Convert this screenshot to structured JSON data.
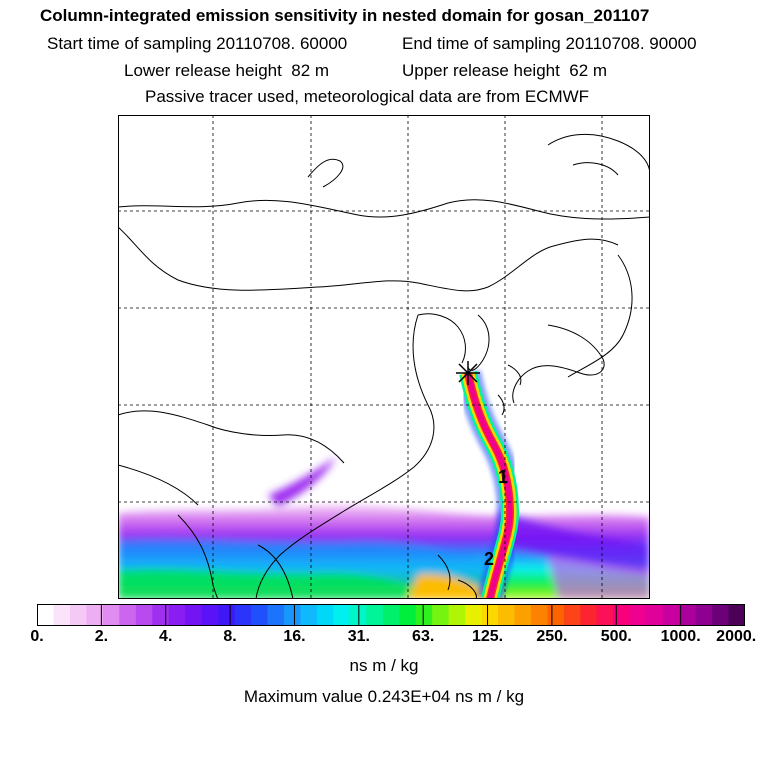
{
  "title": "Column-integrated emission sensitivity in nested domain for gosan_201107",
  "sampling": {
    "start_label": "Start time of sampling",
    "start_value": "20110708. 60000",
    "end_label": "End time of sampling",
    "end_value": "20110708. 90000"
  },
  "release": {
    "lower_label": "Lower release height",
    "lower_value": "82 m",
    "upper_label": "Upper release height",
    "upper_value": "62 m"
  },
  "note": "Passive tracer used, meteorological data are from ECMWF",
  "map": {
    "day_markers": [
      "1",
      "2"
    ],
    "release_site_marker": "star"
  },
  "colorbar": {
    "ticks": [
      "0.",
      "2.",
      "4.",
      "8.",
      "16.",
      "31.",
      "63.",
      "125.",
      "250.",
      "500.",
      "1000.",
      "2000."
    ],
    "colors": [
      "#ffffff",
      "#fbe4fb",
      "#f4c9f6",
      "#eeaef3",
      "#e08cf0",
      "#cc66ee",
      "#b84aef",
      "#a030f0",
      "#8a1ef2",
      "#7314f5",
      "#5a12f7",
      "#4018f8",
      "#2a34fa",
      "#2050fb",
      "#1c74fc",
      "#1896fc",
      "#10b8fc",
      "#00d8f8",
      "#00f0f0",
      "#00f6c8",
      "#00f49a",
      "#00f06c",
      "#00ee3c",
      "#30f020",
      "#74f410",
      "#b0f406",
      "#e8f000",
      "#fcd800",
      "#fcbc00",
      "#fca000",
      "#fc8200",
      "#fc6400",
      "#fc4418",
      "#fc2430",
      "#fc1058",
      "#f8007c",
      "#f0008e",
      "#e0009a",
      "#c800a0",
      "#ac009c",
      "#8e0090",
      "#6c0078",
      "#4c0058"
    ],
    "unit_label": "ns m / kg"
  },
  "max_value_label": "Maximum value  0.243E+04 ns m / kg"
}
